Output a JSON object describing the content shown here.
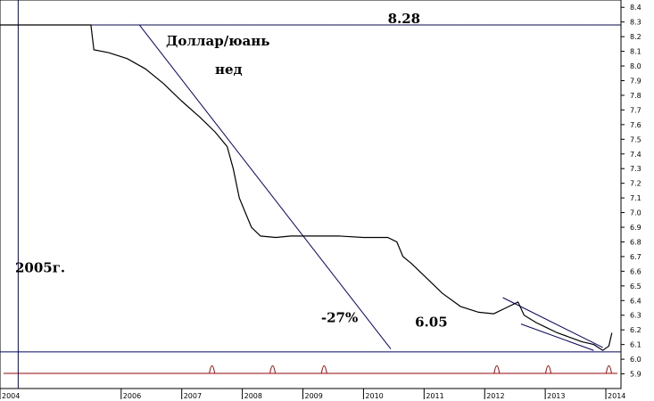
{
  "chart_data": {
    "type": "line",
    "title": "Доллар/юань",
    "subtitle": "нед",
    "x_tick_labels": [
      "2004",
      "2006",
      "2007",
      "2008",
      "2009",
      "2010",
      "2011",
      "2012",
      "2013",
      "2014"
    ],
    "x_tick_values": [
      2004.0,
      2006.0,
      2007.0,
      2008.0,
      2009.0,
      2010.0,
      2011.0,
      2012.0,
      2013.0,
      2014.0
    ],
    "xlim": [
      2004.0,
      2014.25
    ],
    "y_ticks": [
      5.9,
      6.0,
      6.1,
      6.2,
      6.3,
      6.4,
      6.5,
      6.6,
      6.7,
      6.8,
      6.9,
      7.0,
      7.1,
      7.2,
      7.3,
      7.4,
      7.5,
      7.6,
      7.7,
      7.8,
      7.9,
      8.0,
      8.1,
      8.2,
      8.3,
      8.4
    ],
    "y_tick_labels": [
      "5.9",
      "6.0",
      "6.1",
      "6.2",
      "6.3",
      "6.4",
      "6.5",
      "6.6",
      "6.7",
      "6.8",
      "6.9",
      "7.0",
      "7.1",
      "7.2",
      "7.3",
      "7.4",
      "7.5",
      "7.6",
      "7.7",
      "7.8",
      "7.9",
      "8.0",
      "8.1",
      "8.2",
      "8.3",
      "8.4"
    ],
    "ylim": [
      5.8,
      8.45
    ],
    "series": [
      {
        "name": "",
        "x": [
          2004.0,
          2005.5,
          2005.55,
          2005.8,
          2006.1,
          2006.4,
          2006.7,
          2007.0,
          2007.3,
          2007.55,
          2007.75,
          2007.85,
          2007.95,
          2008.05,
          2008.15,
          2008.3,
          2008.55,
          2008.8,
          2009.2,
          2009.6,
          2010.0,
          2010.4,
          2010.55,
          2010.65,
          2010.8,
          2011.0,
          2011.3,
          2011.6,
          2011.9,
          2012.15,
          2012.35,
          2012.55,
          2012.65,
          2012.85,
          2013.0,
          2013.2,
          2013.4,
          2013.6,
          2013.8,
          2013.95,
          2014.05,
          2014.1
        ],
        "y": [
          8.28,
          8.28,
          8.11,
          8.09,
          8.05,
          7.98,
          7.88,
          7.76,
          7.65,
          7.55,
          7.45,
          7.3,
          7.1,
          7.0,
          6.9,
          6.84,
          6.83,
          6.84,
          6.84,
          6.84,
          6.83,
          6.83,
          6.8,
          6.7,
          6.65,
          6.57,
          6.45,
          6.36,
          6.32,
          6.31,
          6.35,
          6.39,
          6.3,
          6.25,
          6.22,
          6.18,
          6.15,
          6.12,
          6.1,
          6.06,
          6.09,
          6.18
        ]
      }
    ],
    "horizontal_lines": [
      8.28,
      6.05
    ],
    "vertical_line_x": 2004.3,
    "trendlines": [
      {
        "x1": 2006.3,
        "y1": 8.28,
        "x2": 2010.45,
        "y2": 6.07
      },
      {
        "x1": 2012.3,
        "y1": 6.42,
        "x2": 2013.95,
        "y2": 6.08
      },
      {
        "x1": 2012.6,
        "y1": 6.24,
        "x2": 2013.8,
        "y2": 6.06
      }
    ],
    "annotations": [
      {
        "text": "8.28",
        "x": 2010.4,
        "y": 8.28
      },
      {
        "text": "2005г.",
        "x": 2004.25,
        "y": 6.58
      },
      {
        "text": "-27%",
        "x": 2009.3,
        "y": 6.24
      },
      {
        "text": "6.05",
        "x": 2010.85,
        "y": 6.21
      }
    ],
    "indicator_spikes_x": [
      2007.5,
      2008.5,
      2009.35,
      2012.2,
      2013.05,
      2014.05
    ],
    "grid": false,
    "colors": {
      "price": "#000000",
      "levels": "#000080",
      "indicator": "#b00000"
    }
  }
}
